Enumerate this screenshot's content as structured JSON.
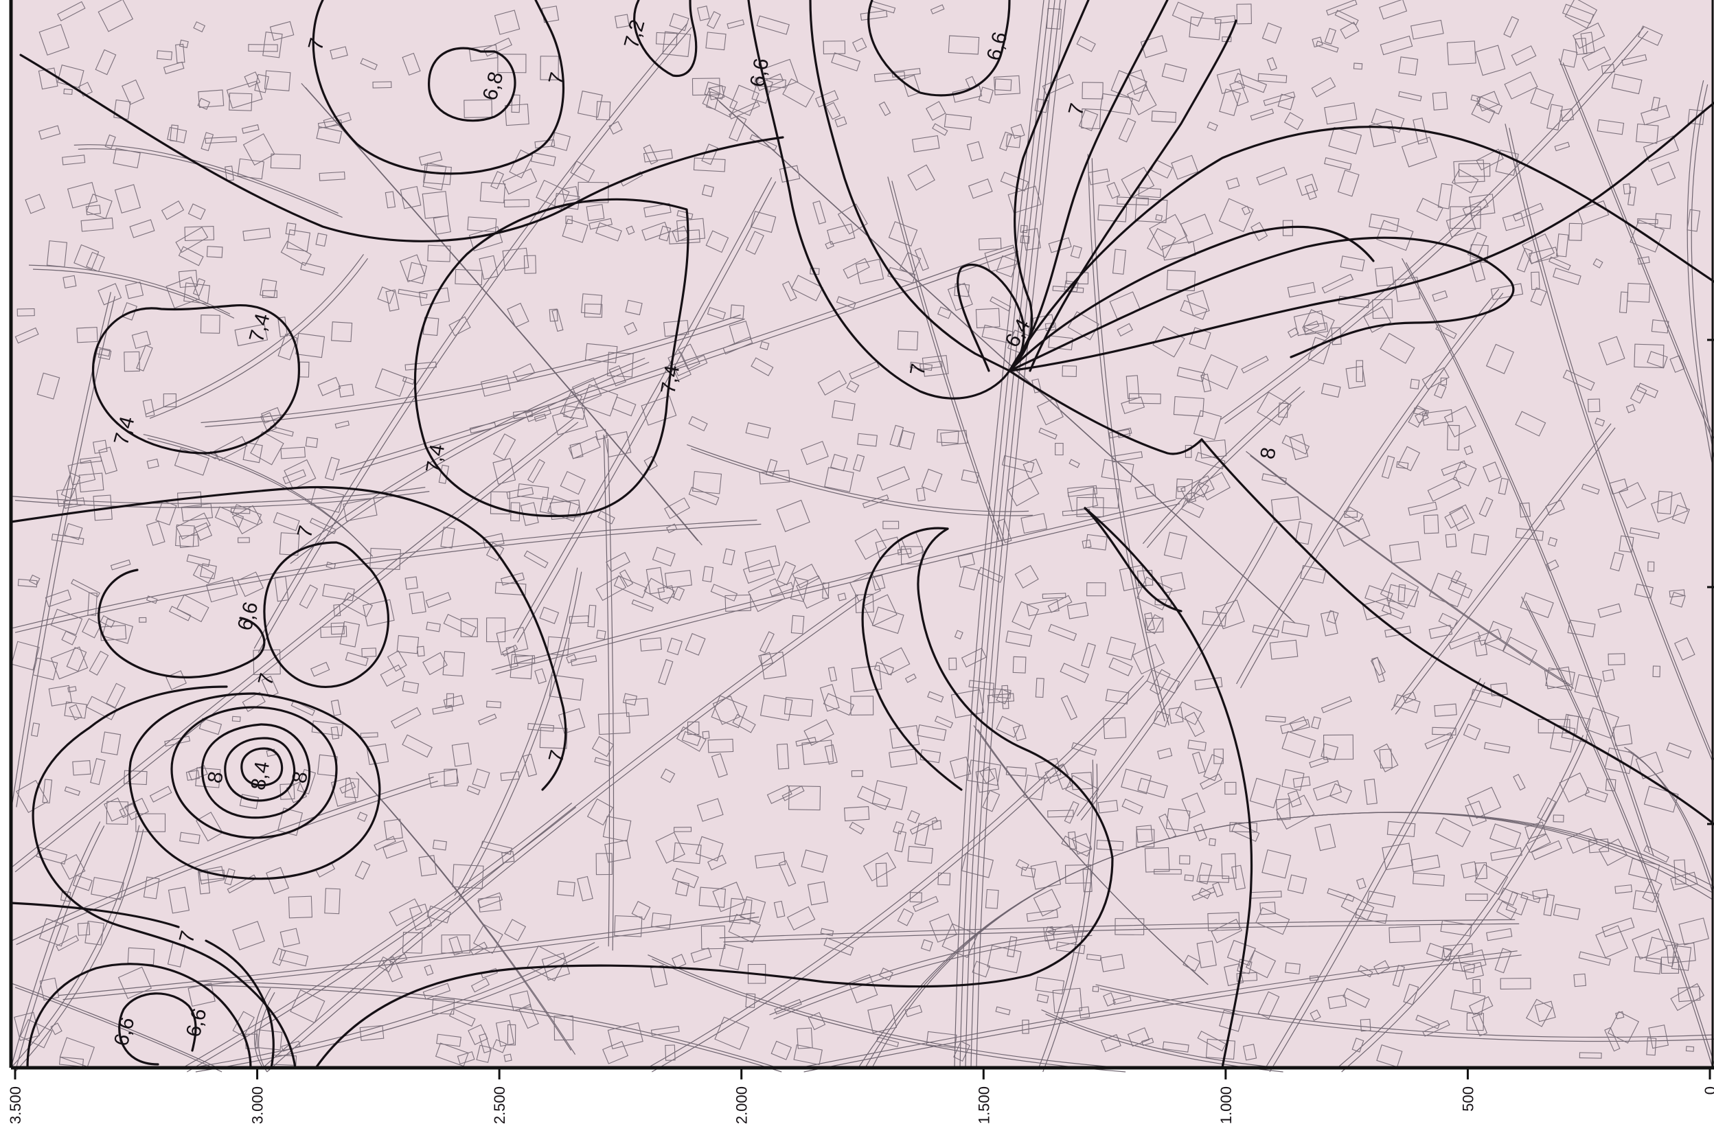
{
  "colors": {
    "background": "#ebdbe1",
    "contour": "#151015",
    "streets": "#6f6570",
    "frame": "#111111"
  },
  "contour_labels": [
    "7",
    "6,8",
    "7,2",
    "7",
    "6,6",
    "6,6",
    "7",
    "7,4",
    "7,4",
    "7,4",
    "7,4",
    "6,4",
    "7",
    "8",
    "7",
    "6,6",
    "7",
    "8",
    "8,4",
    "8",
    "7",
    "7",
    "6,6",
    "6,6"
  ],
  "x_axis": {
    "tick_labels": [
      "3.500",
      "3.000",
      "2.500",
      "2.000",
      "1.500",
      "1.000",
      "500",
      "0"
    ]
  }
}
